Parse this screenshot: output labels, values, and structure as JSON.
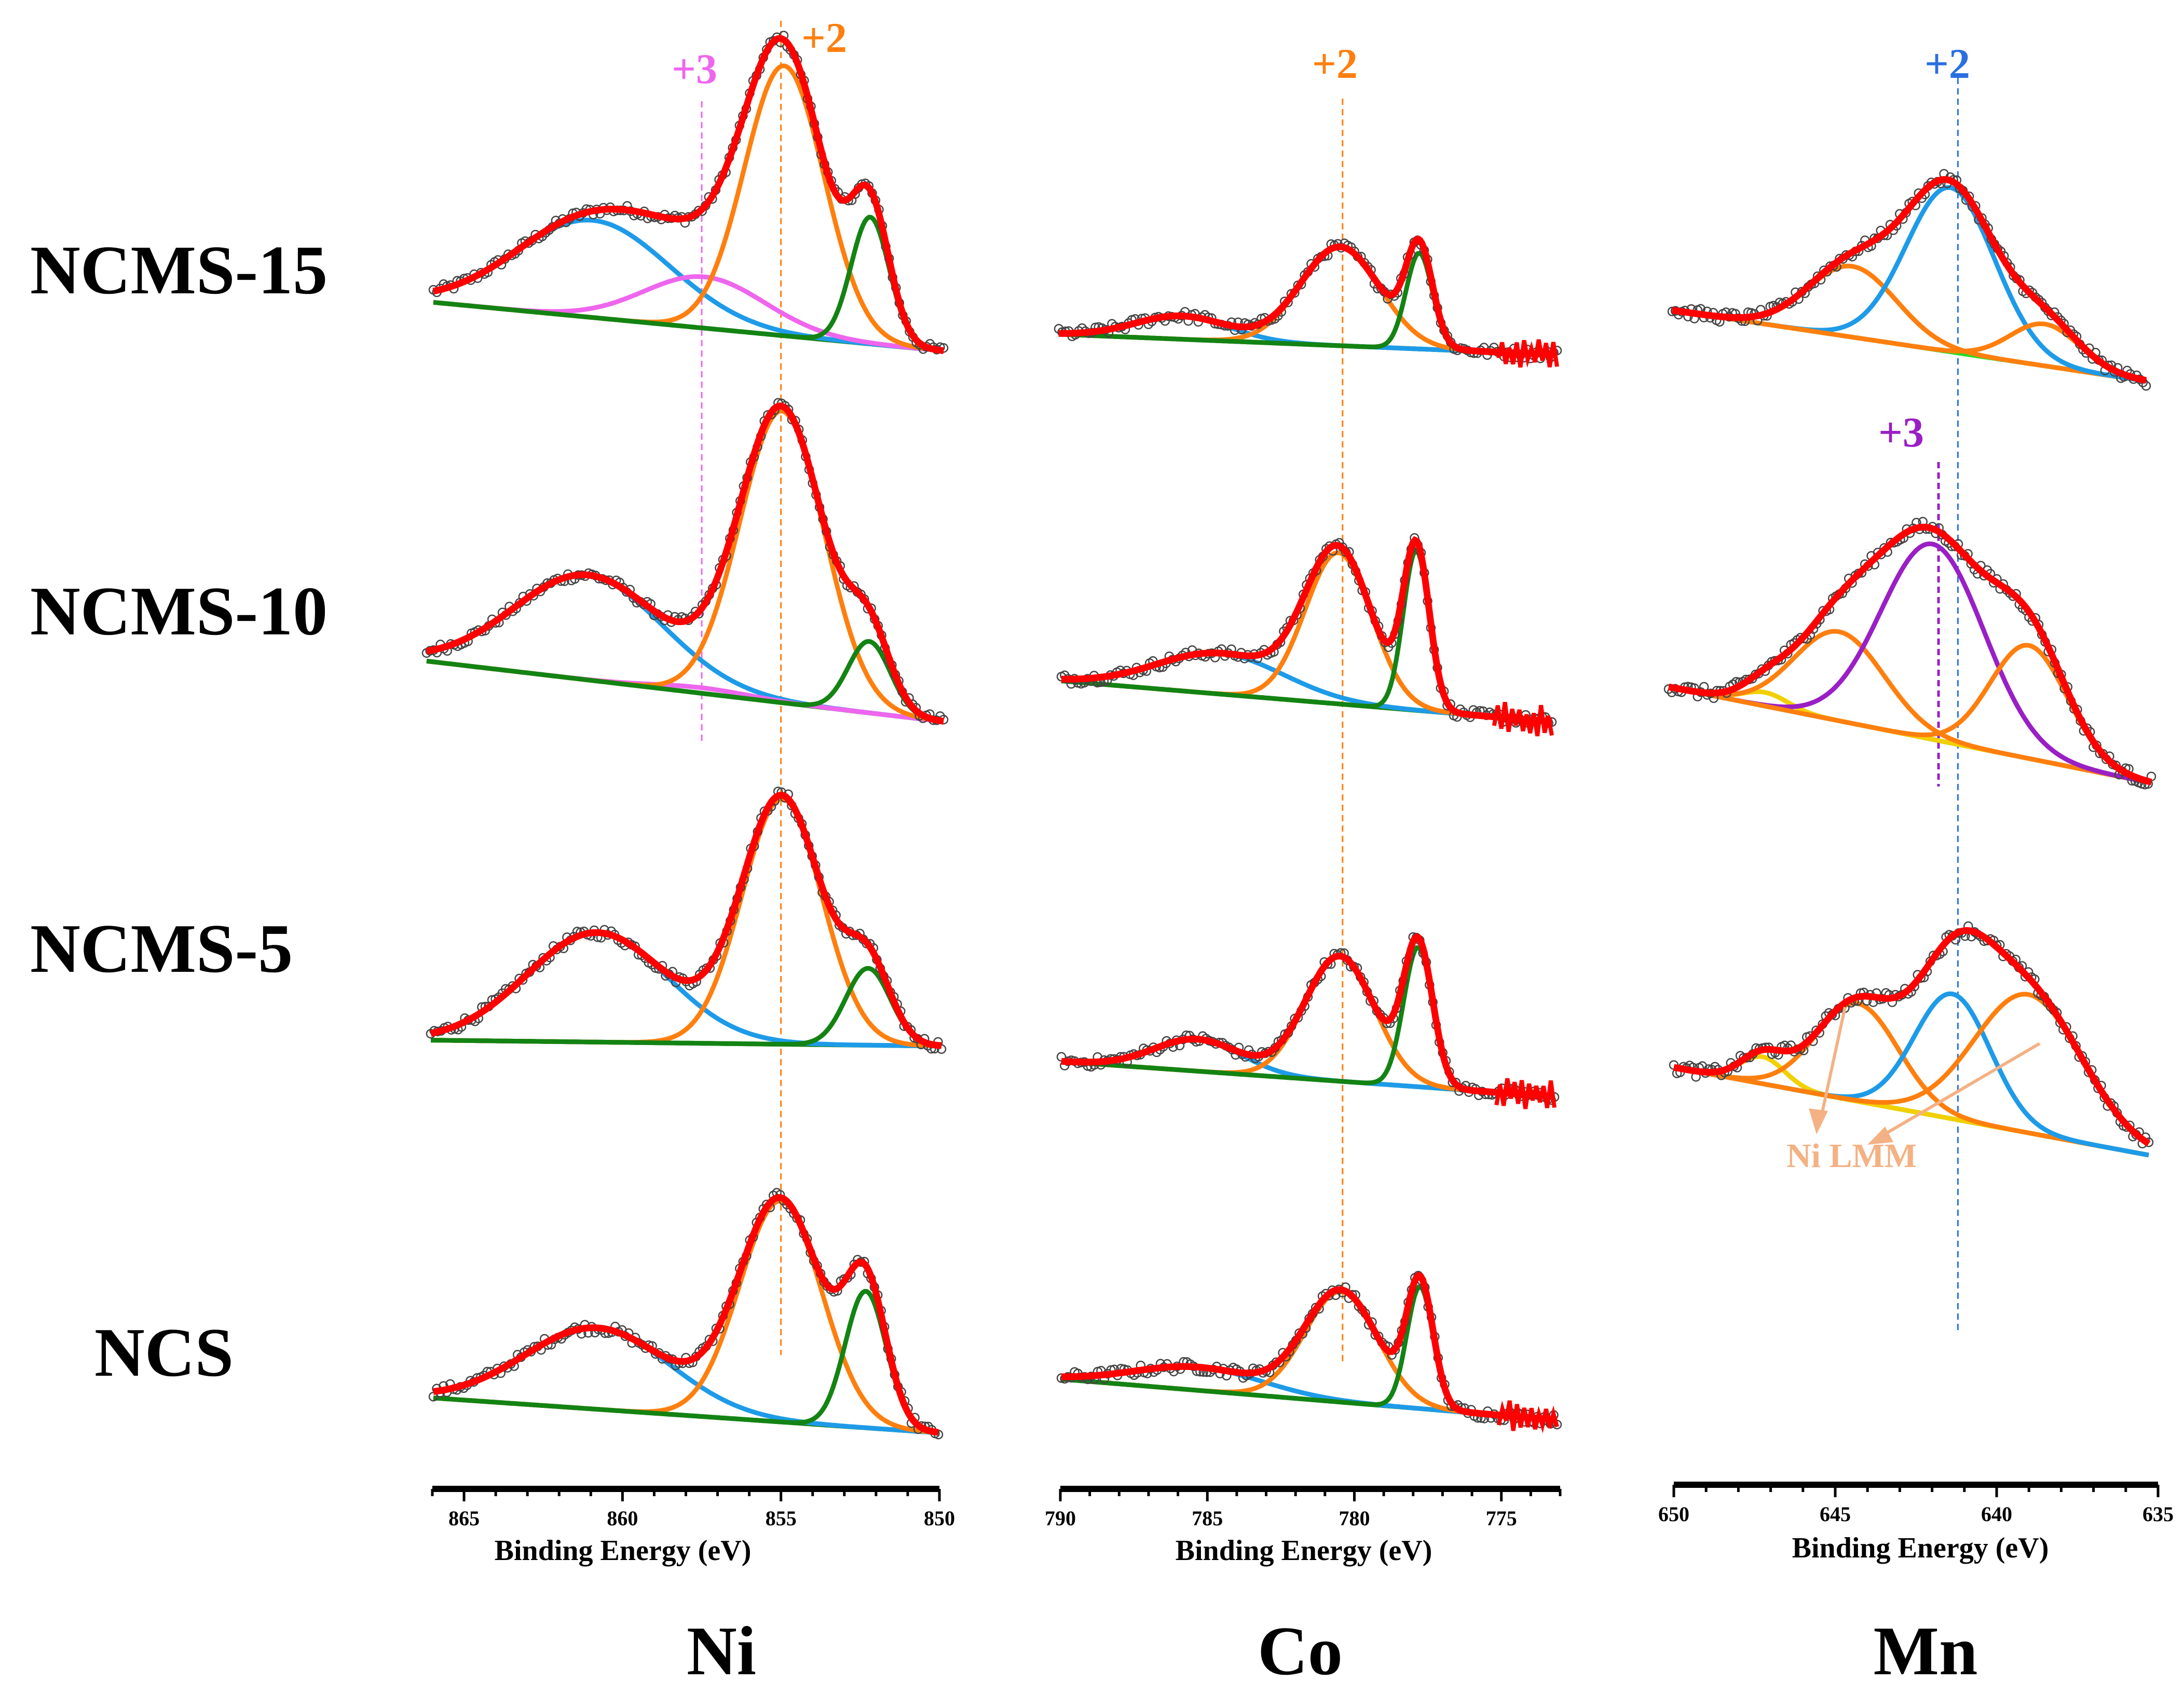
{
  "row_labels": [
    "NCMS-15",
    "NCMS-10",
    "NCMS-5",
    "NCS"
  ],
  "colors": {
    "raw": "#555555",
    "fit": "#ff0000",
    "sat": "#1e9be8",
    "main": "#ff7f0e",
    "low": "#138313",
    "ni3": "#ee66ee",
    "mn3": "#9a1fc4",
    "mn2": "#2a6fe0",
    "mnbg": "#22dd22",
    "yellow": "#f2d000",
    "nilmm": "#f4b183"
  },
  "chart_data": [
    {
      "type": "line",
      "panel": "Ni",
      "title": "Ni",
      "xlabel": "Binding Energy (eV)",
      "ylabel": "",
      "xlim": [
        866,
        850
      ],
      "xticks": [
        865,
        860,
        855,
        850
      ],
      "grid": false,
      "reference_lines": [
        {
          "label": "+2",
          "x": 855.0,
          "color": "#ff7f0e"
        },
        {
          "label": "+3",
          "x": 857.5,
          "color": "#ee66ee"
        }
      ],
      "rows": [
        {
          "sample": "NCMS-15",
          "baseline": [
            0.18,
            0.0
          ],
          "components": [
            {
              "name": "satellite",
              "center": 861.0,
              "width": 2.4,
              "height": 0.36,
              "color": "sat"
            },
            {
              "name": "Ni3+",
              "center": 857.5,
              "width": 1.9,
              "height": 0.19,
              "color": "ni3"
            },
            {
              "name": "Ni2+ main",
              "center": 855.0,
              "width": 1.25,
              "height": 1.0,
              "color": "main"
            },
            {
              "name": "Ni low-BE",
              "center": 852.3,
              "width": 0.6,
              "height": 0.47,
              "color": "low"
            }
          ]
        },
        {
          "sample": "NCMS-10",
          "baseline": [
            0.22,
            0.0
          ],
          "components": [
            {
              "name": "satellite",
              "center": 861.0,
              "width": 2.3,
              "height": 0.38,
              "color": "sat"
            },
            {
              "name": "Ni3+",
              "center": 857.5,
              "width": 1.5,
              "height": 0.02,
              "color": "ni3"
            },
            {
              "name": "Ni2+ main",
              "center": 855.0,
              "width": 1.3,
              "height": 1.06,
              "color": "main"
            },
            {
              "name": "Ni low-BE",
              "center": 852.3,
              "width": 0.65,
              "height": 0.26,
              "color": "low"
            }
          ]
        },
        {
          "sample": "NCMS-5",
          "baseline": [
            0.02,
            0.0
          ],
          "components": [
            {
              "name": "satellite",
              "center": 860.8,
              "width": 2.2,
              "height": 0.37,
              "color": "sat"
            },
            {
              "name": "Ni2+ main",
              "center": 855.0,
              "width": 1.25,
              "height": 0.83,
              "color": "main"
            },
            {
              "name": "Ni low-BE",
              "center": 852.3,
              "width": 0.7,
              "height": 0.26,
              "color": "low"
            }
          ]
        },
        {
          "sample": "NCS",
          "baseline": [
            0.12,
            0.0
          ],
          "components": [
            {
              "name": "satellite",
              "center": 860.8,
              "width": 2.3,
              "height": 0.28,
              "color": "sat"
            },
            {
              "name": "Ni2+ main",
              "center": 855.0,
              "width": 1.3,
              "height": 0.76,
              "color": "main"
            },
            {
              "name": "Ni low-BE",
              "center": 852.3,
              "width": 0.65,
              "height": 0.47,
              "color": "low"
            }
          ]
        }
      ]
    },
    {
      "type": "line",
      "panel": "Co",
      "title": "Co",
      "xlabel": "Binding Energy (eV)",
      "ylabel": "",
      "xlim": [
        790,
        773
      ],
      "xticks": [
        790,
        785,
        780,
        775
      ],
      "grid": false,
      "reference_lines": [
        {
          "label": "+2",
          "x": 780.4,
          "color": "#ff7f0e"
        }
      ],
      "rows": [
        {
          "sample": "NCMS-15",
          "baseline": [
            0.07,
            0.0
          ],
          "components": [
            {
              "name": "satellite",
              "center": 785.8,
              "width": 1.6,
              "height": 0.08,
              "color": "sat"
            },
            {
              "name": "Co2+ main",
              "center": 780.4,
              "width": 1.35,
              "height": 0.34,
              "color": "main"
            },
            {
              "name": "Co low-BE",
              "center": 777.7,
              "width": 0.45,
              "height": 0.33,
              "color": "low"
            }
          ]
        },
        {
          "sample": "NCMS-10",
          "baseline": [
            0.14,
            0.0
          ],
          "components": [
            {
              "name": "satellite",
              "center": 784.5,
              "width": 2.2,
              "height": 0.14,
              "color": "sat"
            },
            {
              "name": "Co2+ main",
              "center": 780.4,
              "width": 1.15,
              "height": 0.52,
              "color": "main"
            },
            {
              "name": "Co low-BE",
              "center": 777.7,
              "width": 0.45,
              "height": 0.55,
              "color": "low"
            }
          ]
        },
        {
          "sample": "NCMS-5",
          "baseline": [
            0.12,
            0.0
          ],
          "components": [
            {
              "name": "satellite",
              "center": 785.3,
              "width": 1.5,
              "height": 0.11,
              "color": "sat"
            },
            {
              "name": "Co2+ main",
              "center": 780.4,
              "width": 1.2,
              "height": 0.43,
              "color": "main"
            },
            {
              "name": "Co low-BE",
              "center": 777.7,
              "width": 0.5,
              "height": 0.48,
              "color": "low"
            }
          ]
        },
        {
          "sample": "NCS",
          "baseline": [
            0.14,
            0.0
          ],
          "components": [
            {
              "name": "satellite",
              "center": 785.3,
              "width": 2.2,
              "height": 0.08,
              "color": "sat"
            },
            {
              "name": "Co2+ main",
              "center": 780.4,
              "width": 1.25,
              "height": 0.38,
              "color": "main"
            },
            {
              "name": "Co low-BE",
              "center": 777.7,
              "width": 0.45,
              "height": 0.42,
              "color": "low"
            }
          ]
        }
      ]
    },
    {
      "type": "line",
      "panel": "Mn",
      "title": "Mn",
      "xlabel": "Binding Energy (eV)",
      "ylabel": "",
      "xlim": [
        650,
        635
      ],
      "xticks": [
        650,
        645,
        640,
        635
      ],
      "grid": false,
      "reference_lines": [
        {
          "label": "+2",
          "x": 641.2,
          "color": "#2a6fe0"
        },
        {
          "label": "+3",
          "x": 641.8,
          "color": "#9a1fc4"
        }
      ],
      "annotations": [
        {
          "text": "Ni LMM",
          "points_to": [
            644.2,
            640.5
          ]
        }
      ],
      "rows": [
        {
          "sample": "NCMS-15",
          "baseline": [
            0.22,
            0.0
          ],
          "components": [
            {
              "name": "Ni LMM",
              "center": 644.3,
              "width": 1.4,
              "height": 0.22,
              "color": "main"
            },
            {
              "name": "Mn2+",
              "center": 641.2,
              "width": 1.4,
              "height": 0.51,
              "color": "sat"
            },
            {
              "name": "Ni LMM",
              "center": 638.2,
              "width": 1.1,
              "height": 0.13,
              "color": "main"
            }
          ]
        },
        {
          "sample": "NCMS-10",
          "baseline": [
            0.28,
            0.0
          ],
          "components": [
            {
              "name": "yellow",
              "center": 647.0,
              "width": 0.7,
              "height": 0.04,
              "color": "yellow"
            },
            {
              "name": "Ni LMM",
              "center": 644.7,
              "width": 1.4,
              "height": 0.26,
              "color": "main"
            },
            {
              "name": "Mn3+",
              "center": 641.8,
              "width": 1.6,
              "height": 0.57,
              "color": "mn3"
            },
            {
              "name": "Ni LMM",
              "center": 638.8,
              "width": 1.2,
              "height": 0.33,
              "color": "main"
            }
          ]
        },
        {
          "sample": "NCMS-5",
          "baseline": [
            0.26,
            0.0
          ],
          "components": [
            {
              "name": "yellow",
              "center": 647.2,
              "width": 0.7,
              "height": 0.08,
              "color": "yellow"
            },
            {
              "name": "Ni LMM",
              "center": 644.2,
              "width": 1.3,
              "height": 0.29,
              "color": "main"
            },
            {
              "name": "Mn2+",
              "center": 641.2,
              "width": 1.2,
              "height": 0.37,
              "color": "sat"
            },
            {
              "name": "Ni LMM",
              "center": 638.8,
              "width": 1.7,
              "height": 0.41,
              "color": "main"
            }
          ]
        }
      ]
    }
  ]
}
